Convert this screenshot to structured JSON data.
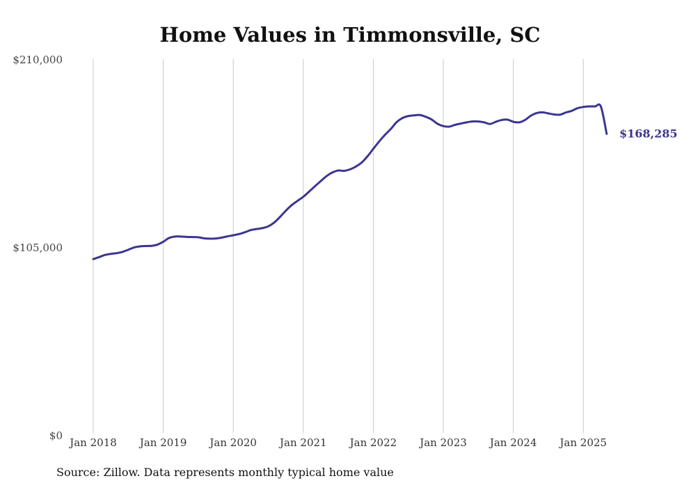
{
  "chart_data": {
    "type": "line",
    "title": "Home Values in Timmonsville, SC",
    "xlabel": "",
    "ylabel": "",
    "ylim": [
      0,
      210000
    ],
    "yticks": [
      {
        "value": 0,
        "label": "$0"
      },
      {
        "value": 105000,
        "label": "$105,000"
      },
      {
        "value": 210000,
        "label": "$210,000"
      }
    ],
    "xticks": [
      {
        "value": "2018-01",
        "label": "Jan 2018"
      },
      {
        "value": "2019-01",
        "label": "Jan 2019"
      },
      {
        "value": "2020-01",
        "label": "Jan 2020"
      },
      {
        "value": "2021-01",
        "label": "Jan 2021"
      },
      {
        "value": "2022-01",
        "label": "Jan 2022"
      },
      {
        "value": "2023-01",
        "label": "Jan 2023"
      },
      {
        "value": "2024-01",
        "label": "Jan 2024"
      },
      {
        "value": "2025-01",
        "label": "Jan 2025"
      }
    ],
    "grid": "vertical",
    "legend": "none",
    "series": [
      {
        "color": "#3b3691",
        "x": [
          "2018-01",
          "2018-02",
          "2018-03",
          "2018-04",
          "2018-05",
          "2018-06",
          "2018-07",
          "2018-08",
          "2018-09",
          "2018-10",
          "2018-11",
          "2018-12",
          "2019-01",
          "2019-02",
          "2019-03",
          "2019-04",
          "2019-05",
          "2019-06",
          "2019-07",
          "2019-08",
          "2019-09",
          "2019-10",
          "2019-11",
          "2019-12",
          "2020-01",
          "2020-02",
          "2020-03",
          "2020-04",
          "2020-05",
          "2020-06",
          "2020-07",
          "2020-08",
          "2020-09",
          "2020-10",
          "2020-11",
          "2020-12",
          "2021-01",
          "2021-02",
          "2021-03",
          "2021-04",
          "2021-05",
          "2021-06",
          "2021-07",
          "2021-08",
          "2021-09",
          "2021-10",
          "2021-11",
          "2021-12",
          "2022-01",
          "2022-02",
          "2022-03",
          "2022-04",
          "2022-05",
          "2022-06",
          "2022-07",
          "2022-08",
          "2022-09",
          "2022-10",
          "2022-11",
          "2022-12",
          "2023-01",
          "2023-02",
          "2023-03",
          "2023-04",
          "2023-05",
          "2023-06",
          "2023-07",
          "2023-08",
          "2023-09",
          "2023-10",
          "2023-11",
          "2023-12",
          "2024-01",
          "2024-02",
          "2024-03",
          "2024-04",
          "2024-05",
          "2024-06",
          "2024-07",
          "2024-08",
          "2024-09",
          "2024-10",
          "2024-11",
          "2024-12",
          "2025-01",
          "2025-02",
          "2025-03",
          "2025-04",
          "2025-05"
        ],
        "values": [
          98300,
          99400,
          100600,
          101200,
          101600,
          102300,
          103500,
          104800,
          105400,
          105600,
          105700,
          106400,
          108000,
          110100,
          110900,
          110900,
          110700,
          110600,
          110500,
          109900,
          109700,
          109800,
          110300,
          111000,
          111600,
          112300,
          113300,
          114500,
          115100,
          115600,
          116600,
          118700,
          121800,
          125300,
          128400,
          130800,
          133100,
          136000,
          139000,
          141900,
          144700,
          146700,
          147800,
          147600,
          148400,
          150000,
          152200,
          155700,
          159900,
          164000,
          167700,
          171000,
          174800,
          177100,
          178200,
          178600,
          178800,
          177800,
          176300,
          173900,
          172600,
          172300,
          173300,
          174000,
          174700,
          175200,
          175200,
          174700,
          173800,
          175000,
          176000,
          176200,
          175000,
          174700,
          176000,
          178400,
          179900,
          180300,
          179700,
          179100,
          179000,
          180200,
          181100,
          182600,
          183300,
          183600,
          183600,
          183600,
          168285
        ]
      }
    ],
    "end_label": "$168,285"
  },
  "footer": {
    "source": "Source: Zillow. Data represents monthly typical home value"
  }
}
